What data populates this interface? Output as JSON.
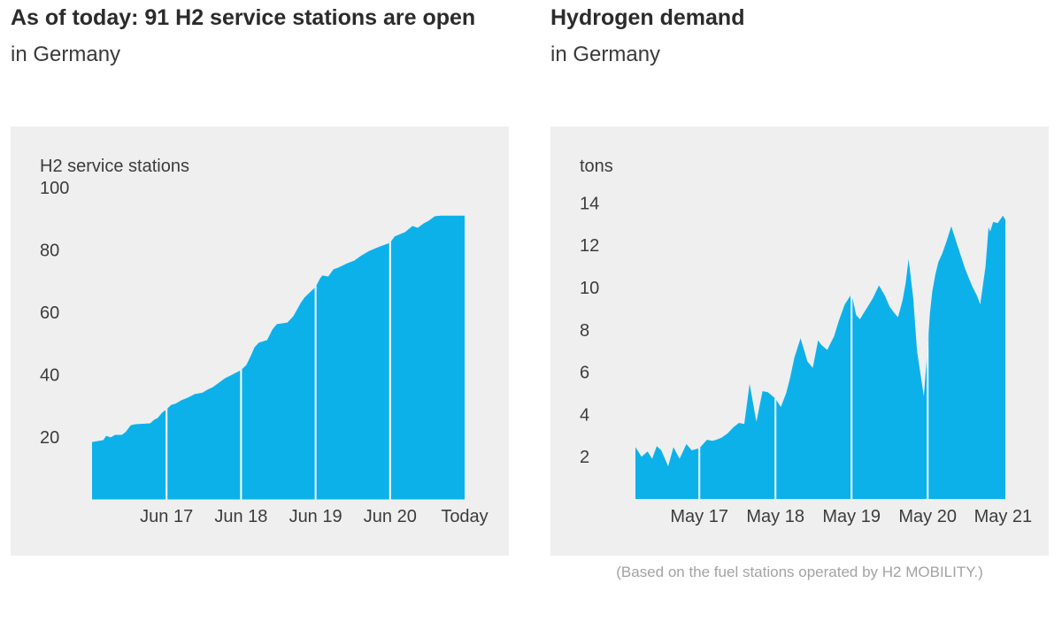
{
  "colors": {
    "area": "#0db1ea",
    "panel": "#efefef",
    "gridline": "#ffffff",
    "title": "#2b2b2b",
    "axis_text": "#3c3c3c",
    "caption": "#a3a3a3"
  },
  "chart_data": [
    {
      "type": "area",
      "title": "As of today: 91 H2 service stations are open",
      "subtitle": "in Germany",
      "unit_label": "H2 service stations",
      "ylabel": "H2 service stations",
      "xlabel": "",
      "ylim": [
        0,
        100
      ],
      "grid": "vertical-year-lines",
      "legend": "none",
      "y_ticks": [
        100,
        80,
        60,
        40,
        20
      ],
      "x_ticks": [
        {
          "label": "Jun 17",
          "t": 1
        },
        {
          "label": "Jun 18",
          "t": 2
        },
        {
          "label": "Jun 19",
          "t": 3
        },
        {
          "label": "Jun 20",
          "t": 4
        },
        {
          "label": "Today",
          "t": 5
        }
      ],
      "gridlines_t": [
        1,
        2,
        3,
        4
      ],
      "points": [
        [
          0,
          18.4
        ],
        [
          0.15,
          19
        ],
        [
          0.19,
          20.4
        ],
        [
          0.25,
          19.9
        ],
        [
          0.31,
          20.7
        ],
        [
          0.4,
          20.7
        ],
        [
          0.45,
          21.6
        ],
        [
          0.52,
          23.8
        ],
        [
          0.58,
          24.1
        ],
        [
          0.78,
          24.4
        ],
        [
          0.83,
          25.5
        ],
        [
          0.88,
          26.1
        ],
        [
          0.94,
          27.8
        ],
        [
          1,
          28.9
        ],
        [
          1.06,
          30.3
        ],
        [
          1.12,
          30.7
        ],
        [
          1.2,
          31.8
        ],
        [
          1.28,
          32.6
        ],
        [
          1.38,
          33.8
        ],
        [
          1.48,
          34.2
        ],
        [
          1.55,
          35.2
        ],
        [
          1.62,
          36
        ],
        [
          1.7,
          37.4
        ],
        [
          1.78,
          38.8
        ],
        [
          1.88,
          40
        ],
        [
          2,
          41.5
        ],
        [
          2.07,
          43.1
        ],
        [
          2.13,
          46
        ],
        [
          2.18,
          48.8
        ],
        [
          2.24,
          50.3
        ],
        [
          2.35,
          51.1
        ],
        [
          2.42,
          54.5
        ],
        [
          2.48,
          56.2
        ],
        [
          2.62,
          56.7
        ],
        [
          2.7,
          58.7
        ],
        [
          2.74,
          60.4
        ],
        [
          2.8,
          63
        ],
        [
          2.85,
          64.7
        ],
        [
          2.91,
          66.1
        ],
        [
          3,
          68.1
        ],
        [
          3.06,
          70.9
        ],
        [
          3.09,
          71.8
        ],
        [
          3.17,
          71.5
        ],
        [
          3.24,
          73.8
        ],
        [
          3.3,
          74.3
        ],
        [
          3.42,
          75.7
        ],
        [
          3.52,
          76.6
        ],
        [
          3.62,
          78.3
        ],
        [
          3.72,
          79.7
        ],
        [
          3.85,
          81
        ],
        [
          4,
          82.3
        ],
        [
          4.06,
          84.3
        ],
        [
          4.2,
          85.7
        ],
        [
          4.3,
          87.7
        ],
        [
          4.37,
          87.1
        ],
        [
          4.45,
          88.5
        ],
        [
          4.52,
          89.4
        ],
        [
          4.6,
          90.8
        ],
        [
          4.68,
          91
        ],
        [
          5,
          91
        ]
      ]
    },
    {
      "type": "area",
      "title": "Hydrogen demand",
      "subtitle": "in Germany",
      "unit_label": "tons",
      "ylabel": "tons",
      "xlabel": "",
      "ylim": [
        0,
        14
      ],
      "grid": "vertical-year-lines",
      "legend": "none",
      "caption": "(Based on the fuel stations operated by H2 MOBILITY.)",
      "y_ticks": [
        14,
        12,
        10,
        8,
        6,
        4,
        2
      ],
      "x_ticks": [
        {
          "label": "May 17",
          "t": 0.84
        },
        {
          "label": "May 18",
          "t": 1.84
        },
        {
          "label": "May 19",
          "t": 2.84
        },
        {
          "label": "May 20",
          "t": 3.84
        },
        {
          "label": "May 21",
          "t": 4.83
        }
      ],
      "gridlines_t": [
        0.84,
        1.84,
        2.84,
        3.84
      ],
      "points": [
        [
          0,
          2.45
        ],
        [
          0.08,
          2.0
        ],
        [
          0.16,
          2.25
        ],
        [
          0.22,
          1.9
        ],
        [
          0.28,
          2.5
        ],
        [
          0.34,
          2.3
        ],
        [
          0.4,
          1.8
        ],
        [
          0.43,
          1.55
        ],
        [
          0.5,
          2.45
        ],
        [
          0.58,
          1.9
        ],
        [
          0.67,
          2.6
        ],
        [
          0.74,
          2.3
        ],
        [
          0.79,
          2.35
        ],
        [
          0.84,
          2.4
        ],
        [
          0.94,
          2.8
        ],
        [
          1.01,
          2.75
        ],
        [
          1.06,
          2.8
        ],
        [
          1.13,
          2.9
        ],
        [
          1.21,
          3.1
        ],
        [
          1.29,
          3.4
        ],
        [
          1.36,
          3.6
        ],
        [
          1.43,
          3.55
        ],
        [
          1.5,
          5.45
        ],
        [
          1.59,
          3.65
        ],
        [
          1.67,
          5.1
        ],
        [
          1.74,
          5.05
        ],
        [
          1.84,
          4.75
        ],
        [
          1.91,
          4.35
        ],
        [
          1.98,
          5.0
        ],
        [
          2.03,
          5.7
        ],
        [
          2.09,
          6.7
        ],
        [
          2.17,
          7.6
        ],
        [
          2.26,
          6.5
        ],
        [
          2.33,
          6.2
        ],
        [
          2.4,
          7.5
        ],
        [
          2.44,
          7.3
        ],
        [
          2.52,
          7.05
        ],
        [
          2.61,
          7.7
        ],
        [
          2.67,
          8.4
        ],
        [
          2.75,
          9.2
        ],
        [
          2.84,
          9.7
        ],
        [
          2.9,
          8.7
        ],
        [
          2.95,
          8.5
        ],
        [
          3.0,
          8.8
        ],
        [
          3.07,
          9.2
        ],
        [
          3.12,
          9.5
        ],
        [
          3.2,
          10.1
        ],
        [
          3.28,
          9.6
        ],
        [
          3.34,
          9.1
        ],
        [
          3.4,
          8.8
        ],
        [
          3.45,
          8.6
        ],
        [
          3.51,
          9.4
        ],
        [
          3.55,
          10.2
        ],
        [
          3.59,
          11.35
        ],
        [
          3.65,
          9.5
        ],
        [
          3.7,
          7.0
        ],
        [
          3.79,
          4.85
        ],
        [
          3.84,
          7.2
        ],
        [
          3.87,
          8.8
        ],
        [
          3.9,
          9.8
        ],
        [
          3.94,
          10.6
        ],
        [
          3.98,
          11.2
        ],
        [
          4.03,
          11.6
        ],
        [
          4.09,
          12.2
        ],
        [
          4.15,
          12.9
        ],
        [
          4.23,
          12.0
        ],
        [
          4.33,
          10.9
        ],
        [
          4.42,
          10.1
        ],
        [
          4.49,
          9.6
        ],
        [
          4.53,
          9.2
        ],
        [
          4.6,
          11.0
        ],
        [
          4.64,
          12.85
        ],
        [
          4.66,
          12.65
        ],
        [
          4.7,
          13.1
        ],
        [
          4.76,
          13.05
        ],
        [
          4.79,
          13.2
        ],
        [
          4.83,
          13.4
        ],
        [
          4.86,
          13.2
        ]
      ]
    }
  ]
}
